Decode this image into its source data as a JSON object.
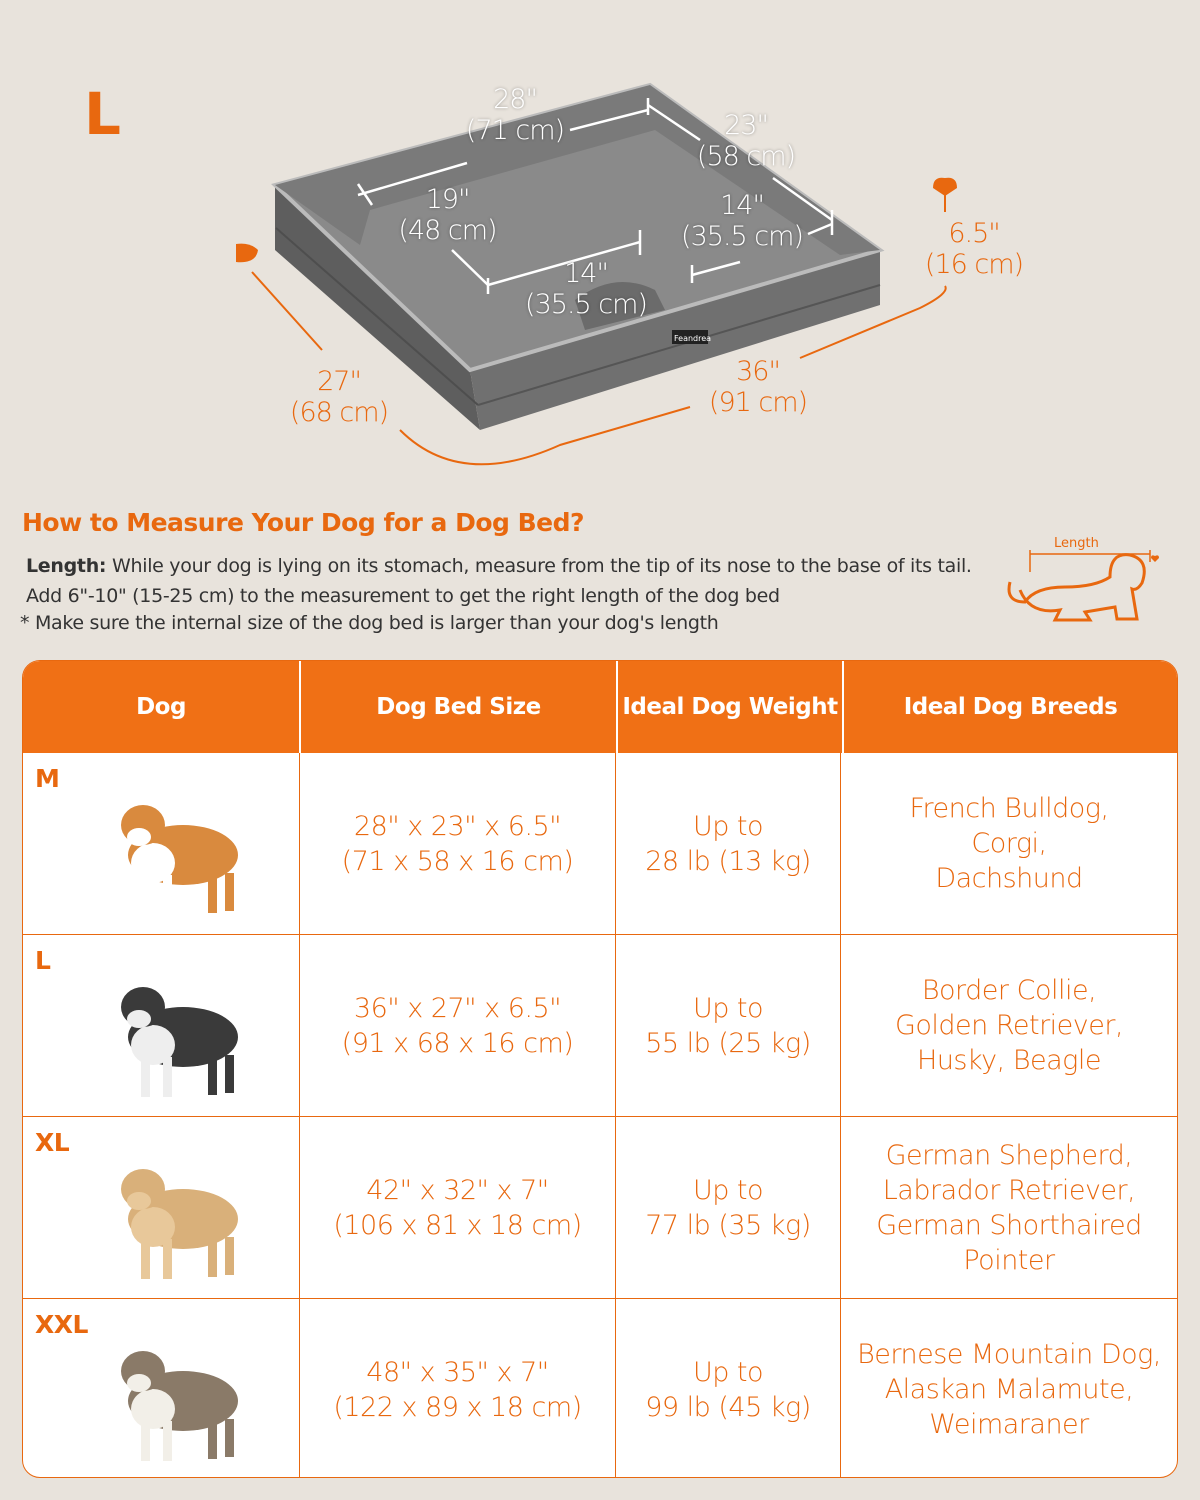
{
  "size_label": "L",
  "bed_dimensions": {
    "back_length": [
      "28\"",
      "(71 cm)"
    ],
    "right_width": [
      "23\"",
      "(58 cm)"
    ],
    "inner_depth": [
      "19\"",
      "(48 cm)"
    ],
    "inner_right": [
      "14\"",
      "(35.5 cm)"
    ],
    "inner_front": [
      "14\"",
      "(35.5 cm)"
    ],
    "height": [
      "6.5\"",
      "(16 cm)"
    ],
    "depth": [
      "27\"",
      "(68 cm)"
    ],
    "length": [
      "36\"",
      "(91 cm)"
    ]
  },
  "brand_label": "Feandrea",
  "measure": {
    "title": "How to Measure Your Dog for a Dog Bed?",
    "length_label": "Length:",
    "length_text": "While your dog is lying on its stomach, measure from the tip of its nose to the base of its tail. Add 6\"-10\" (15-25 cm) to the measurement to get the right length of the dog bed",
    "note": "* Make sure the internal size of the dog bed is larger than your dog's length",
    "icon_label": "Length"
  },
  "table": {
    "headers": [
      "Dog",
      "Dog Bed Size",
      "Ideal Dog Weight",
      "Ideal Dog Breeds"
    ],
    "rows": [
      {
        "size": "M",
        "dog": "corgi",
        "bed": [
          "28\" x 23\" x 6.5\"",
          "(71 x 58 x 16 cm)"
        ],
        "weight": [
          "Up to",
          "28 lb (13 kg)"
        ],
        "breeds": [
          "French Bulldog,",
          "Corgi,",
          "Dachshund"
        ]
      },
      {
        "size": "L",
        "dog": "border-collie",
        "bed": [
          "36\" x 27\" x 6.5\"",
          "(91 x 68 x 16 cm)"
        ],
        "weight": [
          "Up to",
          "55 lb (25 kg)"
        ],
        "breeds": [
          "Border Collie,",
          "Golden Retriever,",
          "Husky, Beagle"
        ]
      },
      {
        "size": "XL",
        "dog": "labrador",
        "bed": [
          "42\" x 32\" x 7\"",
          "(106 x 81 x 18 cm)"
        ],
        "weight": [
          "Up to",
          "77 lb (35 kg)"
        ],
        "breeds": [
          "German Shepherd,",
          "Labrador Retriever,",
          "German Shorthaired",
          "Pointer"
        ]
      },
      {
        "size": "XXL",
        "dog": "malamute",
        "bed": [
          "48\" x 35\" x 7\"",
          "(122 x 89 x 18 cm)"
        ],
        "weight": [
          "Up to",
          "99 lb (45 kg)"
        ],
        "breeds": [
          "Bernese Mountain Dog,",
          "Alaskan Malamute,",
          "Weimaraner"
        ]
      }
    ]
  },
  "colors": {
    "accent": "#f07015",
    "background": "#e8e3dc",
    "bed": "#6e6e6e"
  }
}
